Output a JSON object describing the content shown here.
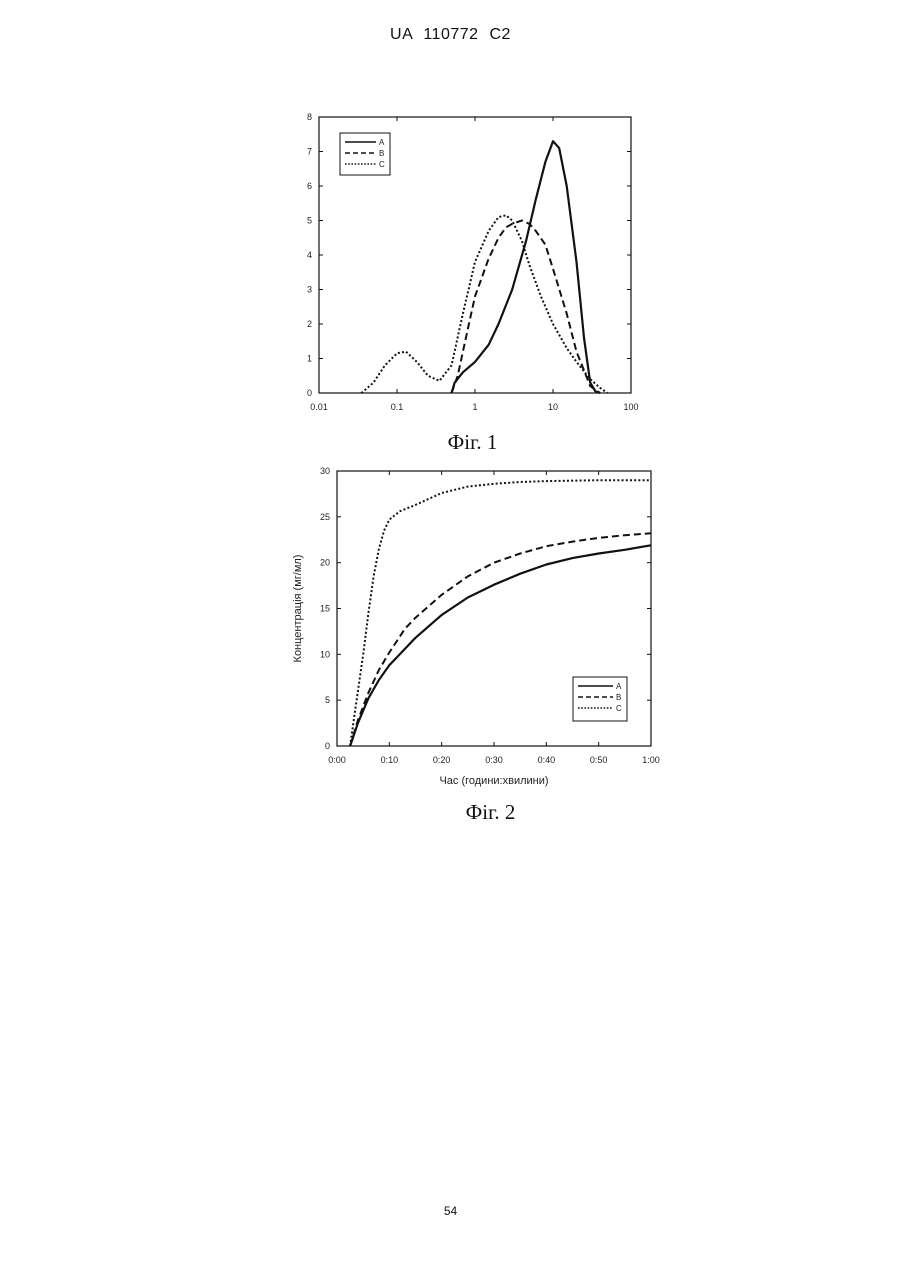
{
  "document": {
    "header": "UA 110772 C2",
    "page_number": "54"
  },
  "chart_data": [
    {
      "type": "line",
      "caption": "Фіг. 1",
      "xlabel": "",
      "ylabel": "",
      "xscale": "log",
      "xlim": [
        0.01,
        100
      ],
      "ylim": [
        0,
        8
      ],
      "xticks": [
        0.01,
        0.1,
        1,
        10,
        100
      ],
      "xtick_labels": [
        "0.01",
        "0.1",
        "1",
        "10",
        "100"
      ],
      "yticks": [
        0,
        1,
        2,
        3,
        4,
        5,
        6,
        7,
        8
      ],
      "ytick_labels": [
        "0",
        "1",
        "2",
        "3",
        "4",
        "5",
        "6",
        "7",
        "8"
      ],
      "legend": "top-left",
      "grid": false,
      "series": [
        {
          "name": "A",
          "style": "solid",
          "x": [
            0.5,
            0.55,
            0.7,
            1.0,
            1.5,
            2.0,
            3.0,
            4.5,
            6.0,
            8.0,
            10.0,
            12.0,
            15.0,
            20.0,
            25.0,
            30.0,
            35.0,
            40.0
          ],
          "y": [
            0.0,
            0.3,
            0.6,
            0.9,
            1.4,
            2.0,
            3.0,
            4.4,
            5.6,
            6.7,
            7.3,
            7.1,
            6.0,
            3.8,
            1.6,
            0.3,
            0.05,
            0.0
          ]
        },
        {
          "name": "B",
          "style": "dashed",
          "x": [
            0.5,
            0.6,
            0.8,
            1.0,
            1.5,
            2.0,
            2.5,
            3.0,
            4.0,
            5.0,
            6.0,
            8.0,
            10.0,
            15.0,
            20.0,
            30.0,
            40.0
          ],
          "y": [
            0.0,
            0.5,
            1.8,
            2.8,
            3.9,
            4.5,
            4.8,
            4.9,
            5.0,
            4.9,
            4.7,
            4.3,
            3.6,
            2.3,
            1.2,
            0.2,
            0.0
          ]
        },
        {
          "name": "C",
          "style": "dotted",
          "x": [
            0.035,
            0.05,
            0.07,
            0.1,
            0.13,
            0.18,
            0.25,
            0.35,
            0.5,
            0.7,
            1.0,
            1.5,
            2.0,
            2.5,
            3.0,
            4.0,
            5.0,
            7.0,
            10.0,
            15.0,
            20.0,
            30.0,
            40.0,
            50.0
          ],
          "y": [
            0.0,
            0.3,
            0.8,
            1.15,
            1.2,
            0.9,
            0.5,
            0.35,
            0.8,
            2.3,
            3.8,
            4.7,
            5.1,
            5.15,
            5.0,
            4.4,
            3.7,
            2.8,
            2.0,
            1.3,
            0.9,
            0.4,
            0.15,
            0.0
          ]
        }
      ]
    },
    {
      "type": "line",
      "caption": "Фіг. 2",
      "xlabel": "Час (години:хвилини)",
      "ylabel": "Концентрація (мг/мл)",
      "x_unit": "minutes",
      "xlim": [
        0,
        60
      ],
      "ylim": [
        0,
        30
      ],
      "xticks": [
        0,
        10,
        20,
        30,
        40,
        50,
        60
      ],
      "xtick_labels": [
        "0:00",
        "0:10",
        "0:20",
        "0:30",
        "0:40",
        "0:50",
        "1:00"
      ],
      "yticks": [
        0,
        5,
        10,
        15,
        20,
        25,
        30
      ],
      "ytick_labels": [
        "0",
        "5",
        "10",
        "15",
        "20",
        "25",
        "30"
      ],
      "legend": "bottom-right",
      "grid": false,
      "series": [
        {
          "name": "A",
          "style": "solid",
          "x": [
            2.5,
            4,
            6,
            8,
            10,
            15,
            20,
            25,
            30,
            35,
            40,
            45,
            50,
            55,
            60
          ],
          "y": [
            0,
            2.5,
            5.2,
            7.2,
            8.8,
            11.8,
            14.3,
            16.2,
            17.6,
            18.8,
            19.8,
            20.5,
            21.0,
            21.4,
            21.9
          ]
        },
        {
          "name": "B",
          "style": "dashed",
          "x": [
            2.5,
            4,
            6,
            8,
            10,
            13,
            15,
            20,
            25,
            30,
            35,
            40,
            45,
            50,
            55,
            60
          ],
          "y": [
            0,
            2.8,
            5.8,
            8.3,
            10.2,
            12.8,
            14.0,
            16.5,
            18.5,
            20.0,
            21.0,
            21.8,
            22.3,
            22.7,
            23.0,
            23.2
          ]
        },
        {
          "name": "C",
          "style": "dotted",
          "x": [
            2.5,
            3.5,
            5,
            6,
            7,
            8,
            9,
            10,
            12,
            15,
            20,
            25,
            30,
            35,
            40,
            50,
            60
          ],
          "y": [
            0,
            4.0,
            10.0,
            14.5,
            18.5,
            21.5,
            23.5,
            24.7,
            25.6,
            26.3,
            27.6,
            28.3,
            28.6,
            28.8,
            28.9,
            29.0,
            29.0
          ]
        }
      ]
    }
  ]
}
